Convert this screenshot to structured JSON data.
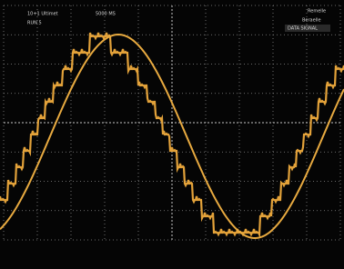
{
  "header": {
    "left": [
      "10+1 Ultimet",
      "RUN 5"
    ],
    "center": "5000 MS",
    "right": [
      "Remelle",
      "Beraelle",
      "DATA SIGNAL"
    ]
  }
}
